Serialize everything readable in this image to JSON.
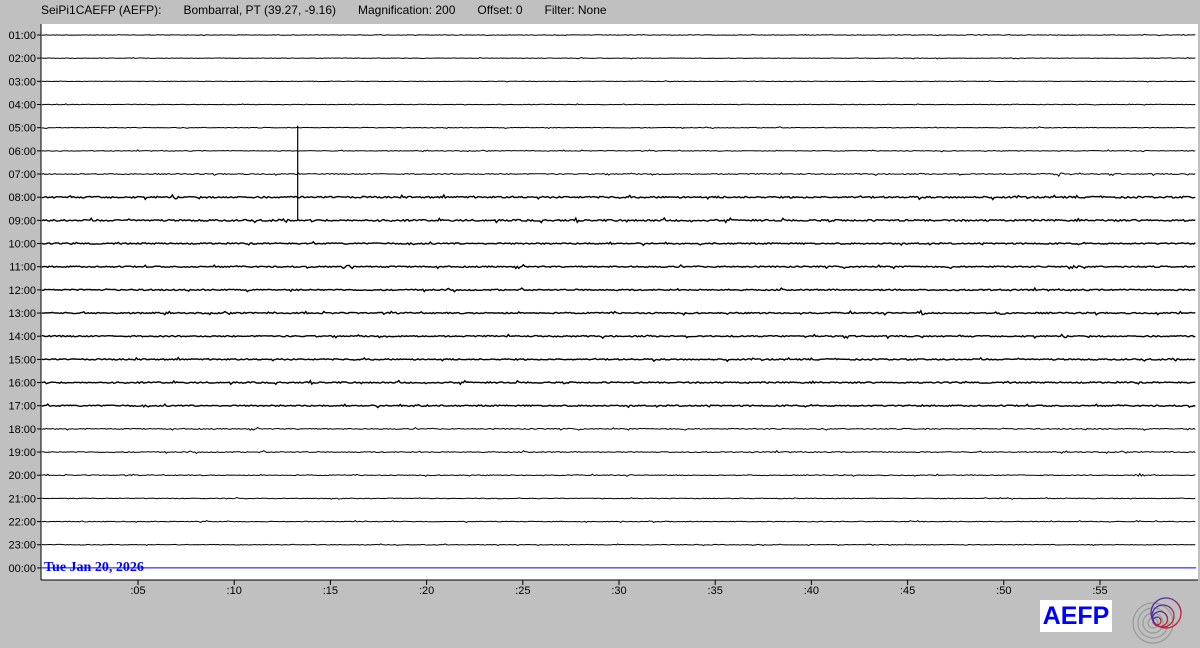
{
  "header": {
    "station": "SeiPi1CAEFP (AEFP):",
    "location": "Bombarral, PT (39.27, -9.16)",
    "magnification": "Magnification: 200",
    "offset": "Offset: 0",
    "filter": "Filter: None"
  },
  "logo": {
    "text": "AEFP"
  },
  "colors": {
    "trace": "#000000",
    "current": "#0000ff",
    "background": "#c0c0c0",
    "plot": "#ffffff"
  },
  "chart_data": {
    "type": "line",
    "subtype": "helicorder",
    "date_label": "Tue Jan 20, 2026",
    "y_tick_labels": [
      "01:00",
      "02:00",
      "03:00",
      "04:00",
      "05:00",
      "06:00",
      "07:00",
      "08:00",
      "09:00",
      "10:00",
      "11:00",
      "12:00",
      "13:00",
      "14:00",
      "15:00",
      "16:00",
      "17:00",
      "18:00",
      "19:00",
      "20:00",
      "21:00",
      "22:00",
      "23:00",
      "00:00"
    ],
    "x_tick_labels": [
      ":05",
      ":10",
      ":15",
      ":20",
      ":25",
      ":30",
      ":35",
      ":40",
      ":45",
      ":50",
      ":55"
    ],
    "x_range_minutes": [
      0,
      60
    ],
    "noise_level_by_row": [
      0.3,
      0.3,
      0.3,
      0.3,
      0.4,
      0.4,
      0.6,
      1.0,
      1.0,
      0.8,
      0.8,
      0.8,
      0.8,
      0.8,
      0.8,
      0.8,
      0.8,
      0.6,
      0.6,
      0.5,
      0.4,
      0.4,
      0.4,
      0
    ],
    "events": [
      {
        "row": "05:00",
        "minute": 13.3,
        "type": "spike",
        "extent_rows": 4
      },
      {
        "row": "07:00",
        "minute": 52.8,
        "type": "burst"
      },
      {
        "row": "13:00",
        "minute": 45.8,
        "type": "burst"
      },
      {
        "row": "13:00",
        "minute": 49.8,
        "type": "burst"
      },
      {
        "row": "17:00",
        "minute": 19.7,
        "type": "burst"
      },
      {
        "row": "20:00",
        "minute": 57.0,
        "type": "burst"
      },
      {
        "row": "11:00",
        "minute": 15.8,
        "type": "burst"
      },
      {
        "row": "11:00",
        "minute": 53.5,
        "type": "burst"
      }
    ]
  }
}
